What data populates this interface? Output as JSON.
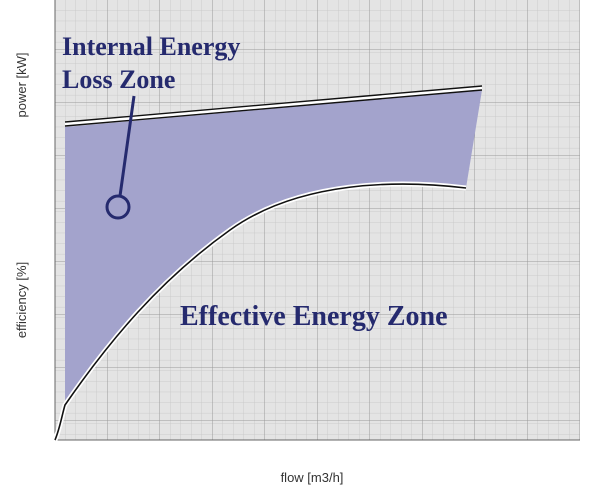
{
  "axes": {
    "y_top": "power [kW]",
    "y_bottom": "efficiency [%]",
    "x": "flow [m3/h]"
  },
  "annotations": {
    "loss_zone": [
      "Internal Energy",
      "Loss Zone"
    ],
    "effective_zone": "Effective Energy Zone"
  }
}
